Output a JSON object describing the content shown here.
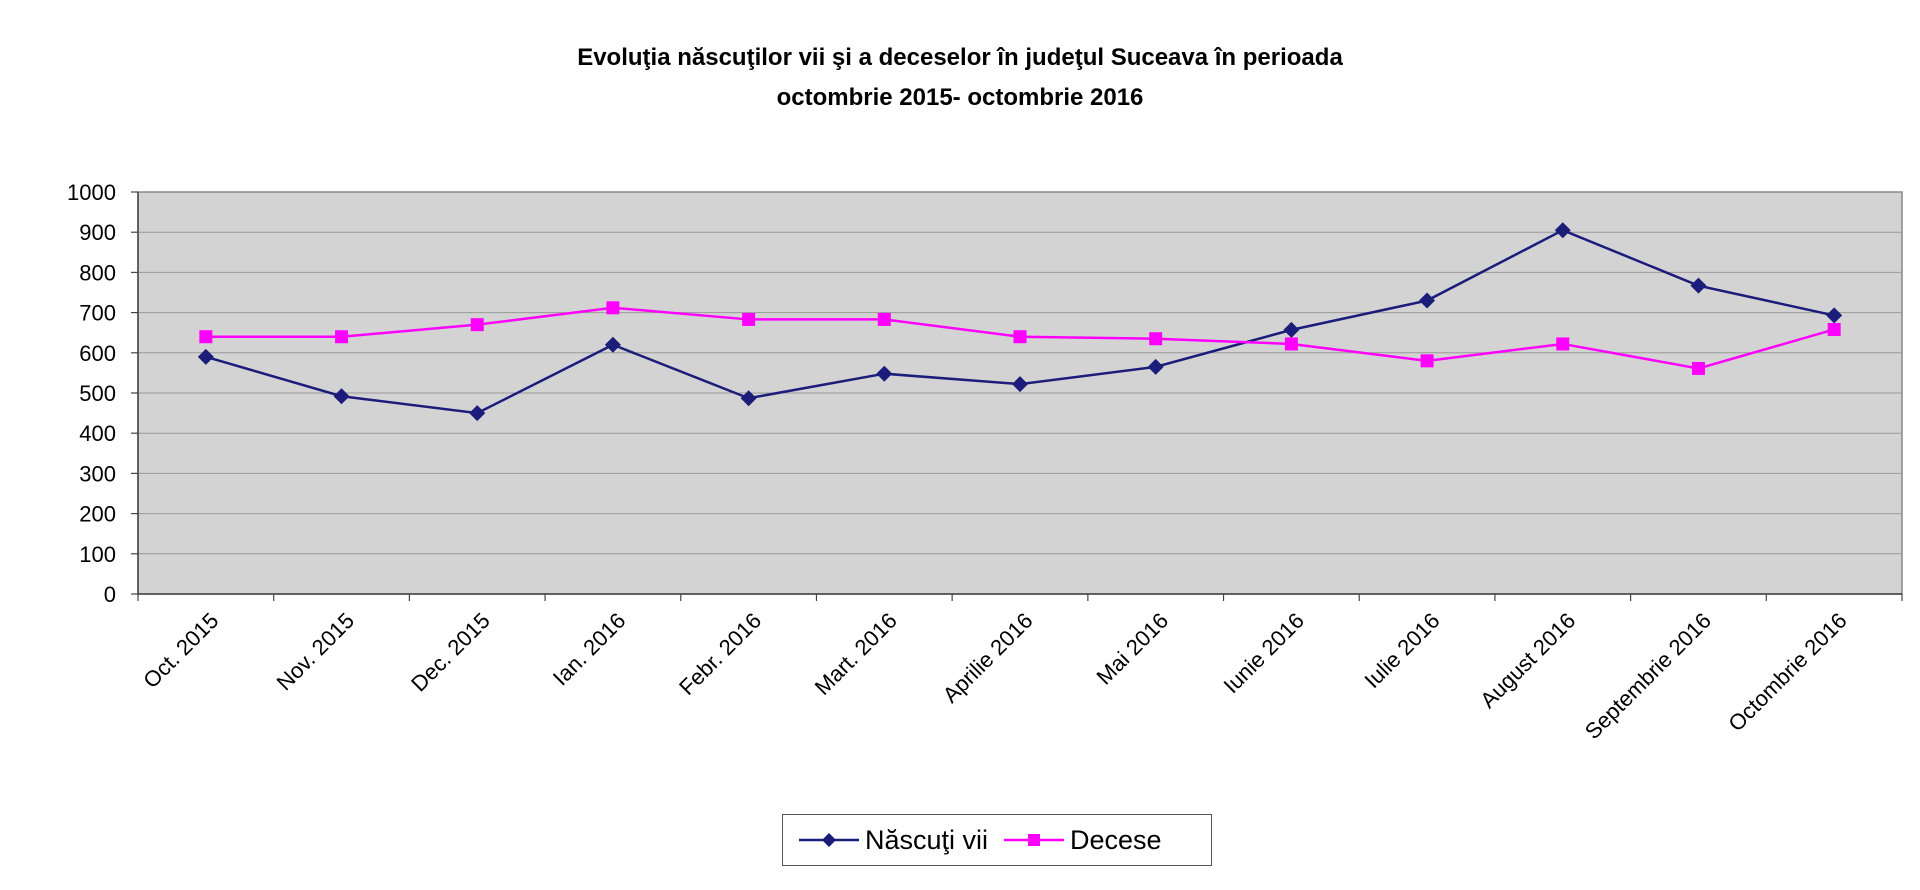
{
  "colors": {
    "plot_background": "#d3d3d3",
    "grid": "#9a9a9a",
    "nascuti": "#1c1c7a",
    "decese": "#ff00ff"
  },
  "chart_data": {
    "type": "line",
    "title": "Evoluţia născuţilor vii şi a deceselor în judeţul Suceava în perioada",
    "subtitle": "octombrie 2015- octombrie 2016",
    "xlabel": "",
    "ylabel": "",
    "ylim": [
      0,
      1000
    ],
    "yticks": [
      "0",
      "100",
      "200",
      "300",
      "400",
      "500",
      "600",
      "700",
      "800",
      "900",
      "1000"
    ],
    "grid": true,
    "legend_position": "bottom",
    "categories": [
      "Oct. 2015",
      "Nov. 2015",
      "Dec. 2015",
      "Ian. 2016",
      "Febr. 2016",
      "Mart. 2016",
      "Aprilie 2016",
      "Mai 2016",
      "Iunie 2016",
      "Iulie 2016",
      "August 2016",
      "Septembrie 2016",
      "Octombrie 2016"
    ],
    "series": [
      {
        "name": "Născuţi vii",
        "marker": "diamond",
        "values": [
          590,
          492,
          450,
          620,
          487,
          548,
          522,
          565,
          657,
          730,
          905,
          767,
          693
        ]
      },
      {
        "name": "Decese",
        "marker": "square",
        "values": [
          640,
          640,
          670,
          712,
          683,
          683,
          640,
          635,
          622,
          580,
          622,
          561,
          658
        ]
      }
    ]
  }
}
